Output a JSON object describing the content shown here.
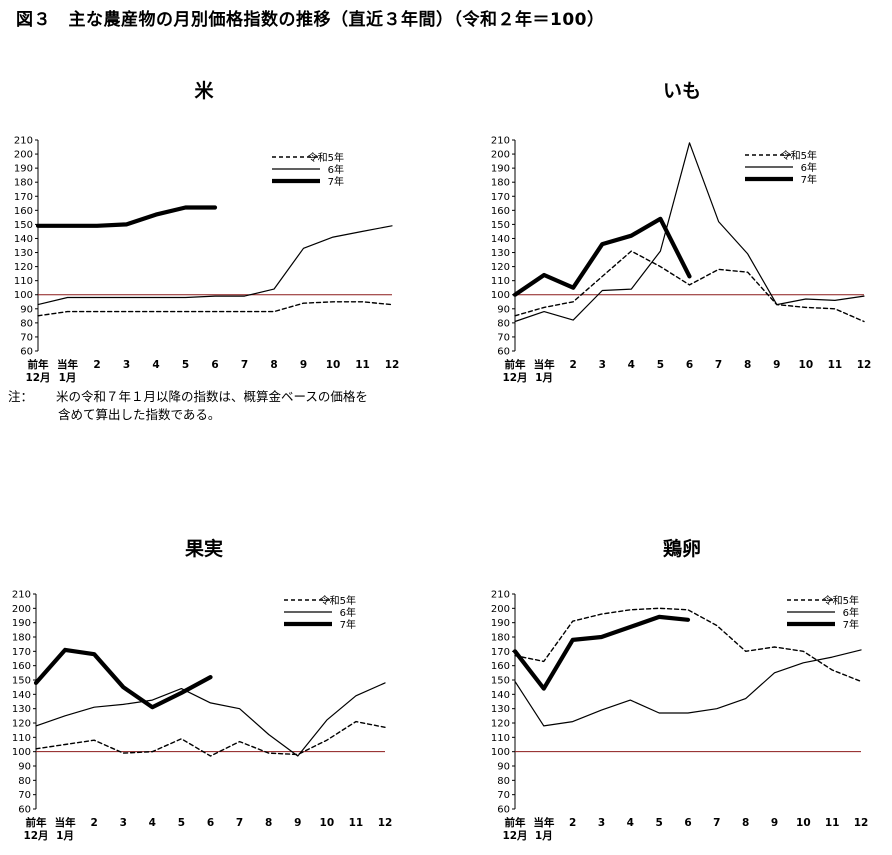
{
  "figure_title": "図３　主な農産物の月別価格指数の推移（直近３年間）（令和２年＝100）",
  "note": {
    "label": "注：",
    "line1": "米の令和７年１月以降の指数は、概算金ベースの価格を",
    "line2": "含めて算出した指数である。"
  },
  "colors": {
    "baseline": "#8b1a1a",
    "series": "#000000"
  },
  "chart_data": [
    {
      "type": "line",
      "title": "米",
      "categories": [
        "前年\n12月",
        "当年\n1月",
        "2",
        "3",
        "4",
        "5",
        "6",
        "7",
        "8",
        "9",
        "10",
        "11",
        "12"
      ],
      "ylim": [
        60,
        210
      ],
      "yticks": [
        60,
        70,
        80,
        90,
        100,
        110,
        120,
        130,
        140,
        150,
        160,
        170,
        180,
        190,
        200,
        210
      ],
      "baseline": 100,
      "legend": "top-right",
      "series": [
        {
          "name": "令和5年",
          "style": "dashed",
          "values": [
            85,
            88,
            88,
            88,
            88,
            88,
            88,
            88,
            88,
            94,
            95,
            95,
            93
          ]
        },
        {
          "name": "6年",
          "style": "thin",
          "values": [
            93,
            98,
            98,
            98,
            98,
            98,
            99,
            99,
            104,
            133,
            141,
            145,
            149
          ]
        },
        {
          "name": "7年",
          "style": "thick",
          "values": [
            149,
            149,
            149,
            150,
            157,
            162,
            162,
            null,
            null,
            null,
            null,
            null,
            null
          ]
        }
      ]
    },
    {
      "type": "line",
      "title": "いも",
      "categories": [
        "前年\n12月",
        "当年\n1月",
        "2",
        "3",
        "4",
        "5",
        "6",
        "7",
        "8",
        "9",
        "10",
        "11",
        "12"
      ],
      "ylim": [
        60,
        210
      ],
      "yticks": [
        60,
        70,
        80,
        90,
        100,
        110,
        120,
        130,
        140,
        150,
        160,
        170,
        180,
        190,
        200,
        210
      ],
      "baseline": 100,
      "legend": "top-right",
      "series": [
        {
          "name": "令和5年",
          "style": "dashed",
          "values": [
            85,
            91,
            95,
            113,
            131,
            120,
            107,
            118,
            116,
            93,
            91,
            90,
            81
          ]
        },
        {
          "name": "6年",
          "style": "thin",
          "values": [
            81,
            88,
            82,
            103,
            104,
            131,
            208,
            152,
            129,
            93,
            97,
            96,
            99
          ]
        },
        {
          "name": "7年",
          "style": "thick",
          "values": [
            100,
            114,
            105,
            136,
            142,
            154,
            113,
            null,
            null,
            null,
            null,
            null,
            null
          ]
        }
      ]
    },
    {
      "type": "line",
      "title": "果実",
      "categories": [
        "前年\n12月",
        "当年\n1月",
        "2",
        "3",
        "4",
        "5",
        "6",
        "7",
        "8",
        "9",
        "10",
        "11",
        "12"
      ],
      "ylim": [
        60,
        210
      ],
      "yticks": [
        60,
        70,
        80,
        90,
        100,
        110,
        120,
        130,
        140,
        150,
        160,
        170,
        180,
        190,
        200,
        210
      ],
      "baseline": 100,
      "legend": "top-right",
      "series": [
        {
          "name": "令和5年",
          "style": "dashed",
          "values": [
            102,
            105,
            108,
            99,
            100,
            109,
            97,
            107,
            99,
            98,
            108,
            121,
            117
          ]
        },
        {
          "name": "6年",
          "style": "thin",
          "values": [
            118,
            125,
            131,
            133,
            136,
            144,
            134,
            130,
            112,
            97,
            122,
            139,
            148
          ]
        },
        {
          "name": "7年",
          "style": "thick",
          "values": [
            148,
            171,
            168,
            145,
            131,
            141,
            152,
            null,
            null,
            null,
            null,
            null,
            null
          ]
        }
      ]
    },
    {
      "type": "line",
      "title": "鶏卵",
      "categories": [
        "前年\n12月",
        "当年\n1月",
        "2",
        "3",
        "4",
        "5",
        "6",
        "7",
        "8",
        "9",
        "10",
        "11",
        "12"
      ],
      "ylim": [
        60,
        210
      ],
      "yticks": [
        60,
        70,
        80,
        90,
        100,
        110,
        120,
        130,
        140,
        150,
        160,
        170,
        180,
        190,
        200,
        210
      ],
      "baseline": 100,
      "legend": "top-right",
      "series": [
        {
          "name": "令和5年",
          "style": "dashed",
          "values": [
            167,
            163,
            191,
            196,
            199,
            200,
            199,
            188,
            170,
            173,
            170,
            157,
            149
          ]
        },
        {
          "name": "6年",
          "style": "thin",
          "values": [
            149,
            118,
            121,
            129,
            136,
            127,
            127,
            130,
            137,
            155,
            162,
            166,
            171
          ]
        },
        {
          "name": "7年",
          "style": "thick",
          "values": [
            170,
            144,
            178,
            180,
            187,
            194,
            192,
            null,
            null,
            null,
            null,
            null,
            null
          ]
        }
      ]
    }
  ]
}
